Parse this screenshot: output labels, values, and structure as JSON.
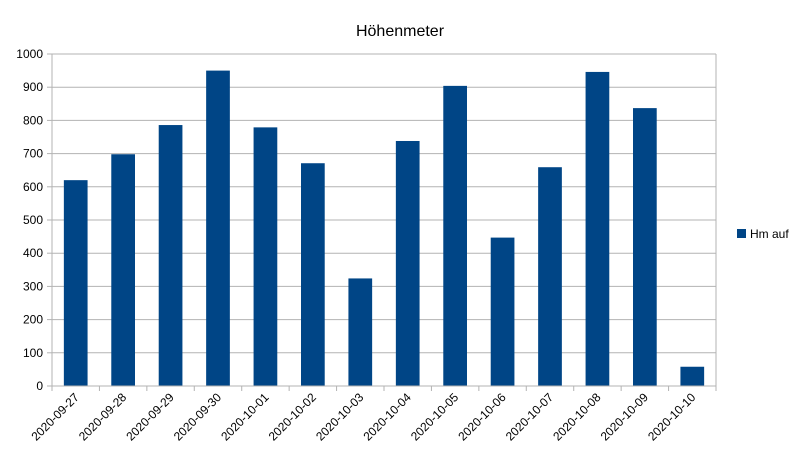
{
  "chart_data": {
    "type": "bar",
    "title": "Höhenmeter",
    "xlabel": "",
    "ylabel": "",
    "categories": [
      "2020-09-27",
      "2020-09-28",
      "2020-09-29",
      "2020-09-30",
      "2020-10-01",
      "2020-10-02",
      "2020-10-03",
      "2020-10-04",
      "2020-10-05",
      "2020-10-06",
      "2020-10-07",
      "2020-10-08",
      "2020-10-09",
      "2020-10-10"
    ],
    "series": [
      {
        "name": "Hm auf",
        "color": "#004586",
        "values": [
          620,
          698,
          786,
          950,
          779,
          671,
          324,
          738,
          904,
          447,
          659,
          946,
          837,
          58
        ]
      }
    ],
    "ylim": [
      0,
      1000
    ],
    "yticks": [
      "0",
      "100",
      "200",
      "300",
      "400",
      "500",
      "600",
      "700",
      "800",
      "900",
      "1000"
    ],
    "grid": true,
    "legend_position": "right"
  }
}
